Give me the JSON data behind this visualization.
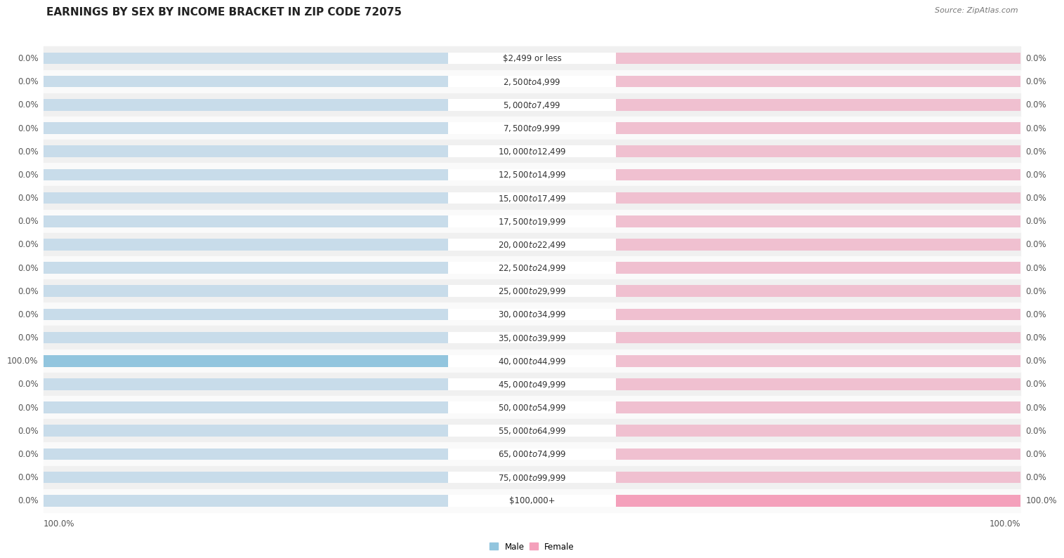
{
  "title": "EARNINGS BY SEX BY INCOME BRACKET IN ZIP CODE 72075",
  "source": "Source: ZipAtlas.com",
  "categories": [
    "$2,499 or less",
    "$2,500 to $4,999",
    "$5,000 to $7,499",
    "$7,500 to $9,999",
    "$10,000 to $12,499",
    "$12,500 to $14,999",
    "$15,000 to $17,499",
    "$17,500 to $19,999",
    "$20,000 to $22,499",
    "$22,500 to $24,999",
    "$25,000 to $29,999",
    "$30,000 to $34,999",
    "$35,000 to $39,999",
    "$40,000 to $44,999",
    "$45,000 to $49,999",
    "$50,000 to $54,999",
    "$55,000 to $64,999",
    "$65,000 to $74,999",
    "$75,000 to $99,999",
    "$100,000+"
  ],
  "male_values": [
    0.0,
    0.0,
    0.0,
    0.0,
    0.0,
    0.0,
    0.0,
    0.0,
    0.0,
    0.0,
    0.0,
    0.0,
    0.0,
    100.0,
    0.0,
    0.0,
    0.0,
    0.0,
    0.0,
    0.0
  ],
  "female_values": [
    0.0,
    0.0,
    0.0,
    0.0,
    0.0,
    0.0,
    0.0,
    0.0,
    0.0,
    0.0,
    0.0,
    0.0,
    0.0,
    0.0,
    0.0,
    0.0,
    0.0,
    0.0,
    0.0,
    100.0
  ],
  "male_color": "#92c5de",
  "female_color": "#f4a0bb",
  "male_bg_color": "#c8dcea",
  "female_bg_color": "#f0c0d0",
  "row_bg_even": "#f0f0f0",
  "row_bg_odd": "#fafafa",
  "max_val": 100.0,
  "title_fontsize": 11,
  "source_fontsize": 8,
  "label_fontsize": 8.5,
  "category_fontsize": 8.5
}
